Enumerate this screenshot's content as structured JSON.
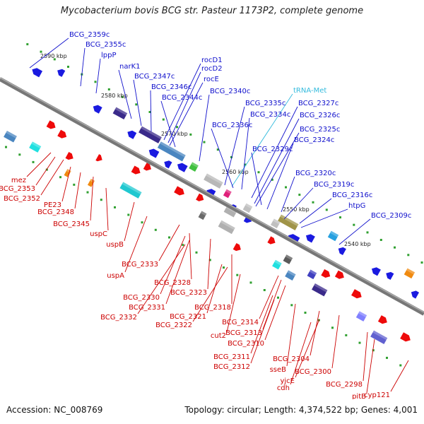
{
  "title": "Mycobacterium bovis BCG str. Pasteur 1173P2, complete genome",
  "footer": {
    "accession": "Accession: NC_008769",
    "summary": "Topology: circular; Length: 4,374,522 bp; Genes: 4,001"
  },
  "colors": {
    "forward_label": "#1010cc",
    "reverse_label": "#cc0000",
    "trna_label": "#33bbdd",
    "backbone": "#777777"
  },
  "kbp_ticks": [
    "2590 kbp",
    "2580 kbp",
    "2570 kbp",
    "2560 kbp",
    "2550 kbp",
    "2540 kbp"
  ],
  "forward_labels": [
    "BCG_2359c",
    "BCG_2355c",
    "lppP",
    "narK1",
    "BCG_2347c",
    "BCG_2346c",
    "rocD1",
    "rocD2",
    "rocE",
    "BCG_2344c",
    "BCG_2340c",
    "tRNA-Met",
    "BCG_2335c",
    "BCG_2334c",
    "BCG_2336c",
    "BCG_2327c",
    "BCG_2326c",
    "BCG_2325c",
    "BCG_2329c",
    "BCG_2324c",
    "BCG_2320c",
    "BCG_2319c",
    "BCG_2316c",
    "htpG",
    "BCG_2309c"
  ],
  "reverse_labels": [
    "mez",
    "BCG_2353",
    "BCG_2352",
    "PE23",
    "BCG_2348",
    "BCG_2345",
    "uspC",
    "uspB",
    "BCG_2333",
    "uspA",
    "BCG_2328",
    "BCG_2330",
    "BCG_2323",
    "BCG_2331",
    "BCG_2318",
    "BCG_2332",
    "BCG_2321",
    "BCG_2322",
    "BCG_2314",
    "cut2",
    "BCG_2313",
    "BCG_2310",
    "BCG_2311",
    "BCG_2304",
    "BCG_2312",
    "sseB",
    "BCG_2300",
    "yjcE",
    "cdh",
    "BCG_2298",
    "pitB",
    "cyp121"
  ]
}
